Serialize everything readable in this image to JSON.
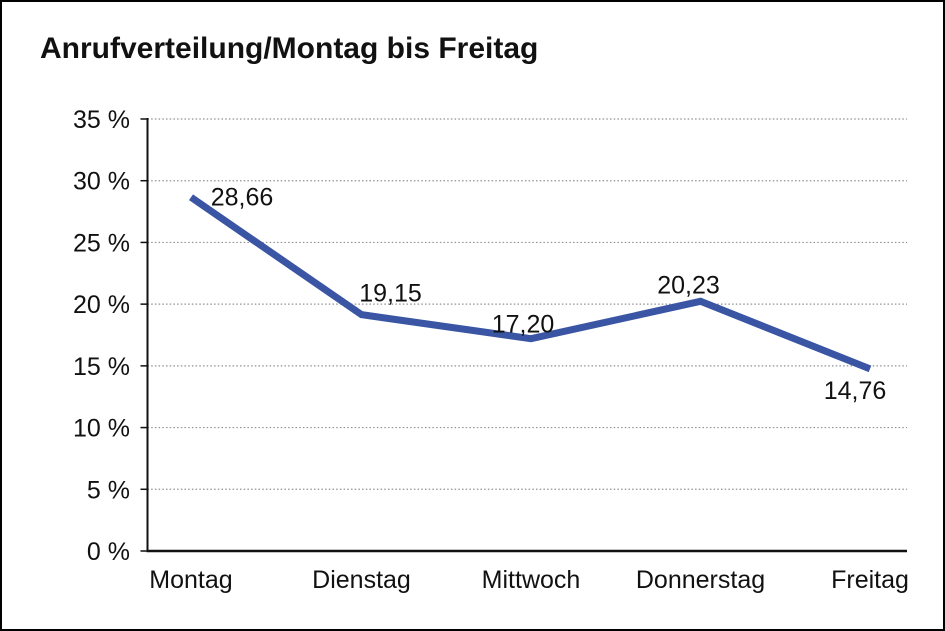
{
  "window": {
    "title": "Anrufverteilung/Montag bis Freitag"
  },
  "chart_data": {
    "type": "line",
    "title": "Anrufverteilung/Montag bis Freitag",
    "categories": [
      "Montag",
      "Dienstag",
      "Mittwoch",
      "Donnerstag",
      "Freitag"
    ],
    "values": [
      28.66,
      19.15,
      17.2,
      20.23,
      14.76
    ],
    "point_labels": [
      "28,66",
      "19,15",
      "17,20",
      "20,23",
      "14,76"
    ],
    "y_tick_labels": [
      "0 %",
      "5 %",
      "10 %",
      "15 %",
      "20 %",
      "25 %",
      "30 %",
      "35 %"
    ],
    "ylim": [
      0,
      35
    ],
    "y_tick_step": 5,
    "xlabel": "",
    "ylabel": "",
    "grid": "horizontal-dotted",
    "legend": "none",
    "colors": {
      "line": "#3955A3",
      "text": "#111111",
      "grid": "#909090",
      "axis": "#111111",
      "background": "#ffffff",
      "border": "#000000"
    }
  }
}
